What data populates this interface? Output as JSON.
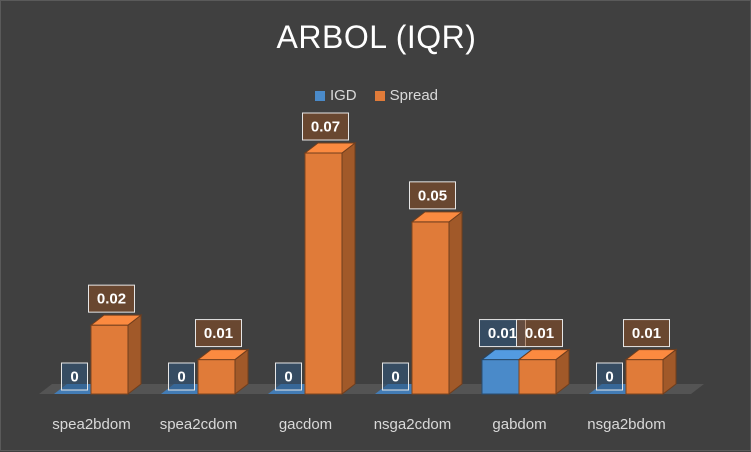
{
  "chart_data": {
    "type": "bar",
    "title": "ARBOL (IQR)",
    "categories": [
      "spea2bdom",
      "spea2cdom",
      "gacdom",
      "nsga2cdom",
      "gabdom",
      "nsga2bdom"
    ],
    "series": [
      {
        "name": "IGD",
        "values": [
          0,
          0,
          0,
          0,
          0.01,
          0
        ],
        "data_labels": [
          "0",
          "0",
          "0",
          "0",
          "0.01",
          "0"
        ],
        "color": "#4a8ac9"
      },
      {
        "name": "Spread",
        "values": [
          0.02,
          0.01,
          0.07,
          0.05,
          0.01,
          0.01
        ],
        "data_labels": [
          "0.02",
          "0.01",
          "0.07",
          "0.05",
          "0.01",
          "0.01"
        ],
        "color": "#e07b39"
      }
    ],
    "ylim": [
      0,
      0.08
    ],
    "legend": "top",
    "grid": false
  }
}
